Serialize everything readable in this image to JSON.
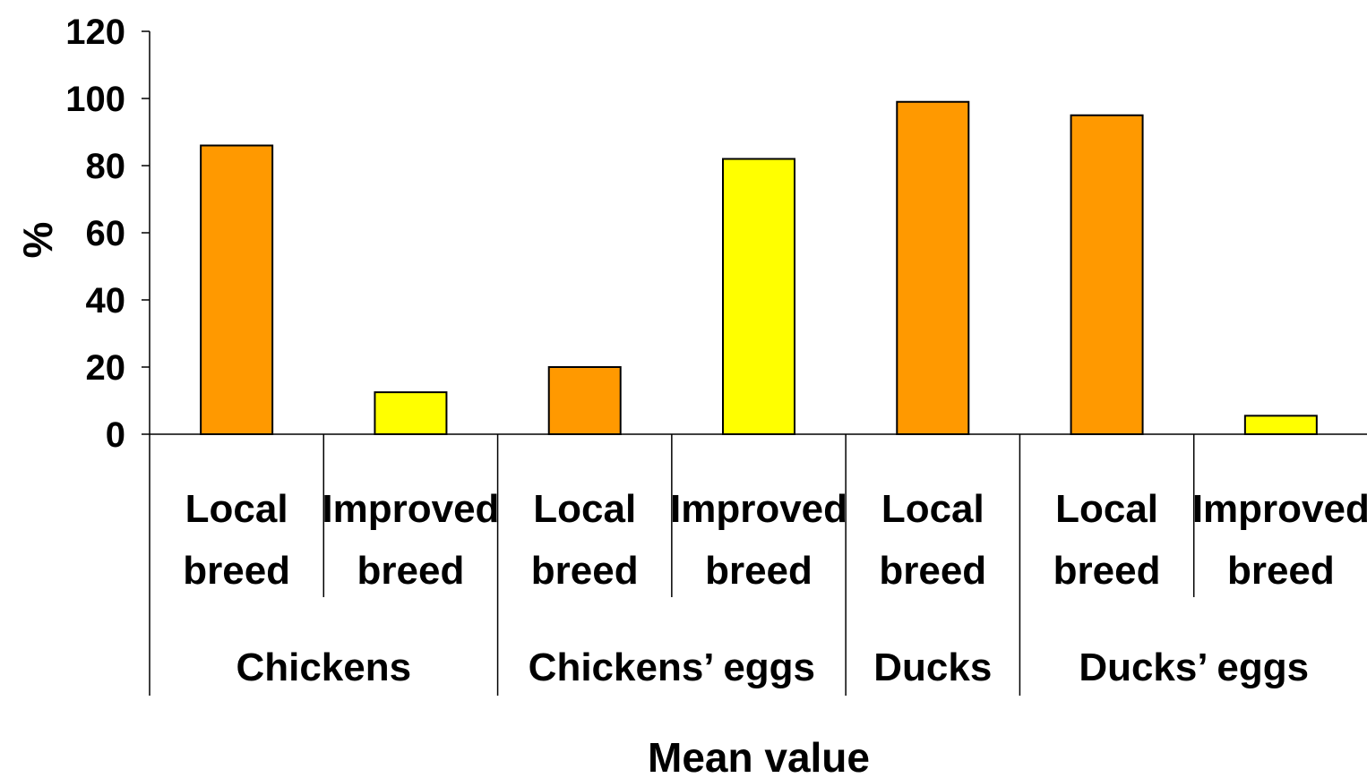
{
  "chart_data": {
    "type": "bar",
    "categories": [
      {
        "label_lines": [
          "Local",
          "breed"
        ],
        "group": "Chickens",
        "value": 86,
        "color": "#ff9900"
      },
      {
        "label_lines": [
          "Improved",
          "breed"
        ],
        "group": "Chickens",
        "value": 12.5,
        "color": "#ffff00"
      },
      {
        "label_lines": [
          "Local",
          "breed"
        ],
        "group": "Chickens’ eggs",
        "value": 20,
        "color": "#ff9900"
      },
      {
        "label_lines": [
          "Improved",
          "breed"
        ],
        "group": "Chickens’ eggs",
        "value": 82,
        "color": "#ffff00"
      },
      {
        "label_lines": [
          "Local",
          "breed"
        ],
        "group": "Ducks",
        "value": 99,
        "color": "#ff9900"
      },
      {
        "label_lines": [
          "Local",
          "breed"
        ],
        "group": "Ducks’ eggs",
        "value": 95,
        "color": "#ff9900"
      },
      {
        "label_lines": [
          "Improved",
          "breed"
        ],
        "group": "Ducks’ eggs",
        "value": 5.5,
        "color": "#ffff00"
      }
    ],
    "groups": [
      {
        "label": "Chickens",
        "count": 2
      },
      {
        "label": "Chickens’ eggs",
        "count": 2
      },
      {
        "label": "Ducks",
        "count": 1
      },
      {
        "label": "Ducks’ eggs",
        "count": 2
      }
    ],
    "ylabel": "%",
    "xlabel": "Mean value",
    "ylim": [
      0,
      120
    ],
    "yticks": [
      "0",
      "20",
      "40",
      "60",
      "80",
      "100",
      "120"
    ],
    "grid": false,
    "legend": "none",
    "colors": {
      "local": "#ff9900",
      "improved": "#ffff00",
      "axis": "#000000"
    }
  }
}
